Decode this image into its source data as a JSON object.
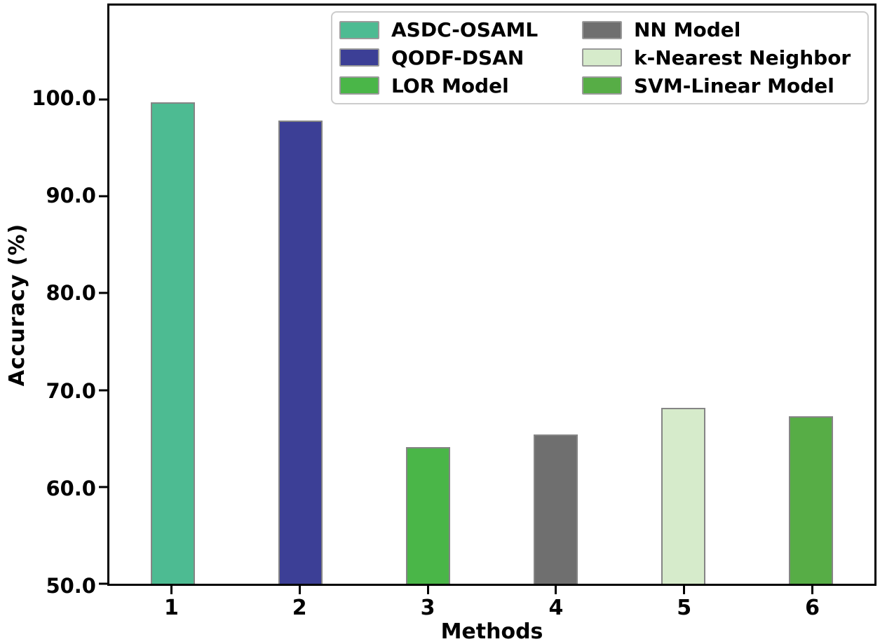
{
  "chart_data": {
    "type": "bar",
    "title": "",
    "xlabel": "Methods",
    "ylabel": "Accuracy (%)",
    "ylim": [
      50.0,
      109.7
    ],
    "yticks": [
      50.0,
      60.0,
      70.0,
      80.0,
      90.0,
      100.0
    ],
    "ytick_labels": [
      "50.0",
      "60.0",
      "70.0",
      "80.0",
      "90.0",
      "100.0"
    ],
    "categories": [
      "1",
      "2",
      "3",
      "4",
      "5",
      "6"
    ],
    "grid": false,
    "bar_edge_color": "#858585",
    "legend_position": "upper right",
    "legend_columns": 2,
    "series": [
      {
        "name": "ASDC-OSAML",
        "method": "1",
        "value": 99.7,
        "color": "#4dbb92"
      },
      {
        "name": "QODF-DSAN",
        "method": "2",
        "value": 97.8,
        "color": "#3c3f96"
      },
      {
        "name": "LOR Model",
        "method": "3",
        "value": 64.1,
        "color": "#4ab648"
      },
      {
        "name": "NN Model",
        "method": "4",
        "value": 65.4,
        "color": "#6f6f6f"
      },
      {
        "name": "k-Nearest Neighbor",
        "method": "5",
        "value": 68.2,
        "color": "#d6ebcb"
      },
      {
        "name": "SVM-Linear Model",
        "method": "6",
        "value": 67.3,
        "color": "#57ad46"
      }
    ]
  }
}
